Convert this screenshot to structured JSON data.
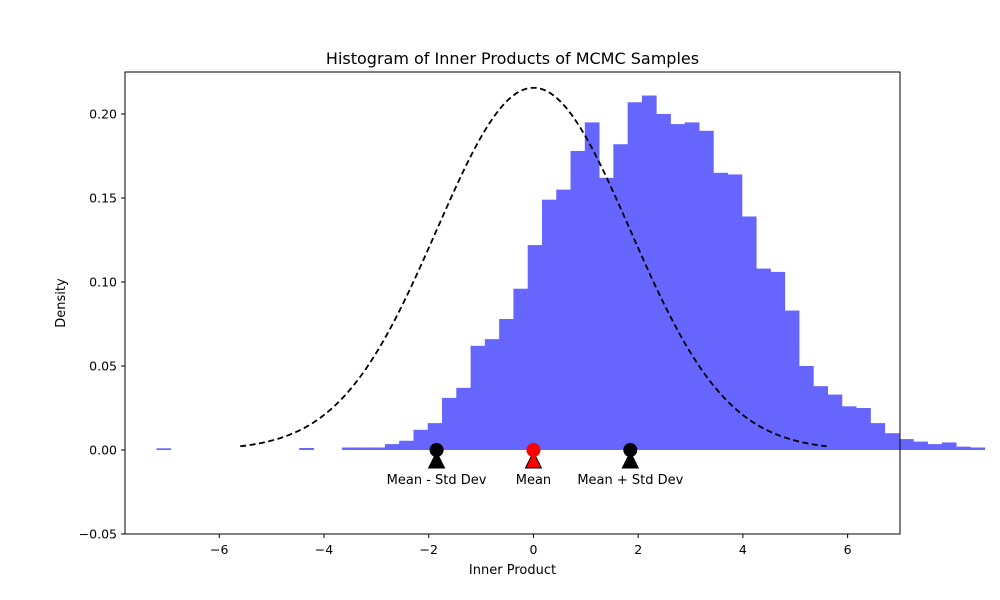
{
  "chart_data": {
    "type": "bar",
    "title": "Histogram of Inner Products of MCMC Samples",
    "xlabel": "Inner Product",
    "ylabel": "Density",
    "xlim": [
      -7.8,
      7.0
    ],
    "ylim": [
      -0.05,
      0.225
    ],
    "x_ticks": [
      -6,
      -4,
      -2,
      0,
      2,
      4,
      6
    ],
    "x_tick_labels": [
      "−6",
      "−4",
      "−2",
      "0",
      "2",
      "4",
      "6"
    ],
    "y_ticks": [
      -0.05,
      0.0,
      0.05,
      0.1,
      0.15,
      0.2
    ],
    "y_tick_labels": [
      "−0.05",
      "0.00",
      "0.05",
      "0.10",
      "0.15",
      "0.20"
    ],
    "grid": false,
    "bar_color": "#6666ff",
    "histogram": {
      "bin_start": -7.2,
      "bin_width": 0.2727,
      "densities": [
        0.001,
        0,
        0,
        0,
        0,
        0,
        0,
        0,
        0,
        0,
        0.0012,
        0,
        0,
        0.0015,
        0.0015,
        0.0015,
        0.0035,
        0.0055,
        0.012,
        0.016,
        0.031,
        0.037,
        0.062,
        0.066,
        0.078,
        0.096,
        0.122,
        0.149,
        0.155,
        0.178,
        0.195,
        0.162,
        0.182,
        0.207,
        0.211,
        0.2,
        0.194,
        0.195,
        0.19,
        0.165,
        0.164,
        0.139,
        0.108,
        0.106,
        0.083,
        0.05,
        0.038,
        0.033,
        0.026,
        0.025,
        0.016,
        0.01,
        0.0065,
        0.005,
        0.0035,
        0.0045,
        0.002,
        0.0015
      ]
    },
    "fit_curve": {
      "label": "",
      "style": "dashed",
      "color": "#000000",
      "mean": 0.0,
      "std": 1.85,
      "x_range": [
        -5.6,
        5.6
      ]
    },
    "annotations": [
      {
        "label": "Mean - Std Dev",
        "x": -1.85,
        "y": 0.0,
        "color": "#000000"
      },
      {
        "label": "Mean",
        "x": 0.0,
        "y": 0.0,
        "color": "#ff0000"
      },
      {
        "label": "Mean + Std Dev",
        "x": 1.85,
        "y": 0.0,
        "color": "#000000"
      }
    ]
  }
}
